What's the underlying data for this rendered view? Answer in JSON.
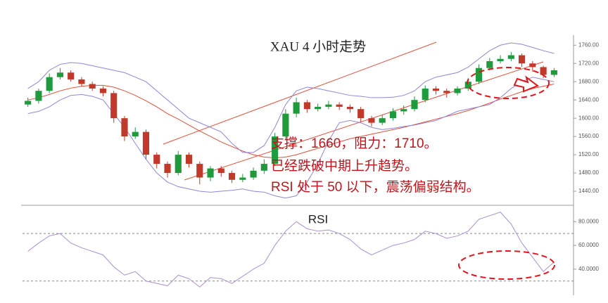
{
  "chart_data": [
    {
      "type": "candlestick",
      "title": "XAU 4 小时走势",
      "annotations": [
        "支撑：1660，阻力：1710。",
        "已经跌破中期上升趋势。",
        "RSI 处于 50 以下，震荡偏弱结构。"
      ],
      "open": [
        1630,
        1638,
        1660,
        1690,
        1700,
        1685,
        1675,
        1665,
        1655,
        1600,
        1560,
        1570,
        1520,
        1500,
        1480,
        1520,
        1500,
        1470,
        1490,
        1480,
        1465,
        1470,
        1485,
        1500,
        1560,
        1610,
        1635,
        1620,
        1625,
        1630,
        1625,
        1620,
        1600,
        1590,
        1600,
        1615,
        1620,
        1640,
        1665,
        1660,
        1655,
        1665,
        1680,
        1710,
        1725,
        1730,
        1738,
        1720,
        1712,
        1695
      ],
      "high": [
        1645,
        1665,
        1698,
        1710,
        1705,
        1690,
        1680,
        1670,
        1660,
        1605,
        1580,
        1575,
        1525,
        1505,
        1528,
        1525,
        1505,
        1495,
        1495,
        1485,
        1478,
        1492,
        1510,
        1568,
        1620,
        1645,
        1640,
        1632,
        1638,
        1635,
        1630,
        1625,
        1605,
        1608,
        1622,
        1628,
        1648,
        1672,
        1670,
        1665,
        1670,
        1688,
        1718,
        1732,
        1738,
        1745,
        1742,
        1725,
        1715,
        1710
      ],
      "low": [
        1625,
        1632,
        1655,
        1685,
        1680,
        1670,
        1660,
        1648,
        1590,
        1550,
        1555,
        1510,
        1490,
        1470,
        1475,
        1492,
        1455,
        1462,
        1472,
        1458,
        1460,
        1465,
        1478,
        1495,
        1552,
        1602,
        1612,
        1615,
        1620,
        1618,
        1612,
        1592,
        1582,
        1585,
        1595,
        1608,
        1615,
        1635,
        1652,
        1645,
        1650,
        1660,
        1675,
        1705,
        1720,
        1725,
        1712,
        1702,
        1688,
        1690
      ],
      "close": [
        1638,
        1660,
        1690,
        1700,
        1685,
        1675,
        1665,
        1655,
        1600,
        1560,
        1570,
        1520,
        1500,
        1480,
        1520,
        1500,
        1470,
        1490,
        1480,
        1465,
        1470,
        1485,
        1500,
        1560,
        1610,
        1635,
        1620,
        1625,
        1630,
        1625,
        1620,
        1600,
        1590,
        1600,
        1615,
        1620,
        1640,
        1665,
        1660,
        1655,
        1665,
        1680,
        1710,
        1725,
        1730,
        1738,
        1720,
        1712,
        1695,
        1705
      ],
      "up_color": "#1f9a3c",
      "down_color": "#c0392b",
      "overlays": [
        {
          "color": "#e0503a",
          "values": [
            1640,
            1645,
            1652,
            1660,
            1666,
            1670,
            1672,
            1672,
            1668,
            1660,
            1650,
            1638,
            1625,
            1610,
            1598,
            1585,
            1572,
            1560,
            1548,
            1538,
            1528,
            1520,
            1515,
            1513,
            1515,
            1520,
            1527,
            1534,
            1541,
            1548,
            1555,
            1560,
            1565,
            1570,
            1575,
            1580,
            1586,
            1592,
            1598,
            1604,
            1610,
            1617,
            1625,
            1633,
            1642,
            1650,
            1658,
            1665,
            1670,
            1675
          ]
        },
        {
          "color": "#8f86d8",
          "values": [
            1665,
            1680,
            1705,
            1718,
            1722,
            1720,
            1715,
            1710,
            1705,
            1700,
            1690,
            1680,
            1660,
            1640,
            1620,
            1600,
            1590,
            1580,
            1570,
            1545,
            1525,
            1525,
            1540,
            1580,
            1630,
            1660,
            1668,
            1665,
            1660,
            1655,
            1650,
            1648,
            1645,
            1645,
            1646,
            1650,
            1660,
            1680,
            1690,
            1695,
            1700,
            1712,
            1730,
            1748,
            1760,
            1765,
            1762,
            1755,
            1748,
            1742
          ]
        },
        {
          "color": "#8f86d8",
          "values": [
            1610,
            1615,
            1625,
            1640,
            1650,
            1652,
            1648,
            1640,
            1610,
            1580,
            1545,
            1510,
            1480,
            1460,
            1450,
            1445,
            1440,
            1438,
            1440,
            1442,
            1445,
            1440,
            1438,
            1430,
            1425,
            1430,
            1460,
            1500,
            1550,
            1590,
            1595,
            1590,
            1580,
            1575,
            1578,
            1582,
            1585,
            1590,
            1595,
            1605,
            1615,
            1620,
            1625,
            1630,
            1645,
            1665,
            1680,
            1690,
            1685,
            1680
          ]
        }
      ],
      "ylim": [
        1420,
        1782
      ],
      "yticks": [
        {
          "value": 1440,
          "label": "1440.00"
        },
        {
          "value": 1480,
          "label": "1480.00"
        },
        {
          "value": 1520,
          "label": "1520.00"
        },
        {
          "value": 1560,
          "label": "1560.00"
        },
        {
          "value": 1600,
          "label": "1600.00"
        },
        {
          "value": 1640,
          "label": "1640.00"
        },
        {
          "value": 1680,
          "label": "1680.00"
        },
        {
          "value": 1720,
          "label": "1720.00"
        },
        {
          "value": 1760,
          "label": "1760.00"
        }
      ]
    },
    {
      "type": "line",
      "title": "RSI",
      "color": "#a88fd0",
      "values": [
        55,
        62,
        68,
        70,
        62,
        58,
        55,
        52,
        42,
        35,
        38,
        30,
        28,
        26,
        35,
        32,
        25,
        33,
        32,
        28,
        34,
        40,
        45,
        60,
        72,
        80,
        74,
        72,
        73,
        70,
        65,
        57,
        52,
        56,
        60,
        62,
        65,
        72,
        70,
        66,
        68,
        72,
        82,
        85,
        88,
        78,
        62,
        50,
        38,
        46
      ],
      "hlines": [
        70,
        30
      ],
      "ylim": [
        21,
        92
      ],
      "yticks": [
        {
          "value": 40,
          "label": "40.0000"
        },
        {
          "value": 60,
          "label": "60.0000"
        },
        {
          "value": 80,
          "label": "80.0000"
        }
      ]
    }
  ]
}
